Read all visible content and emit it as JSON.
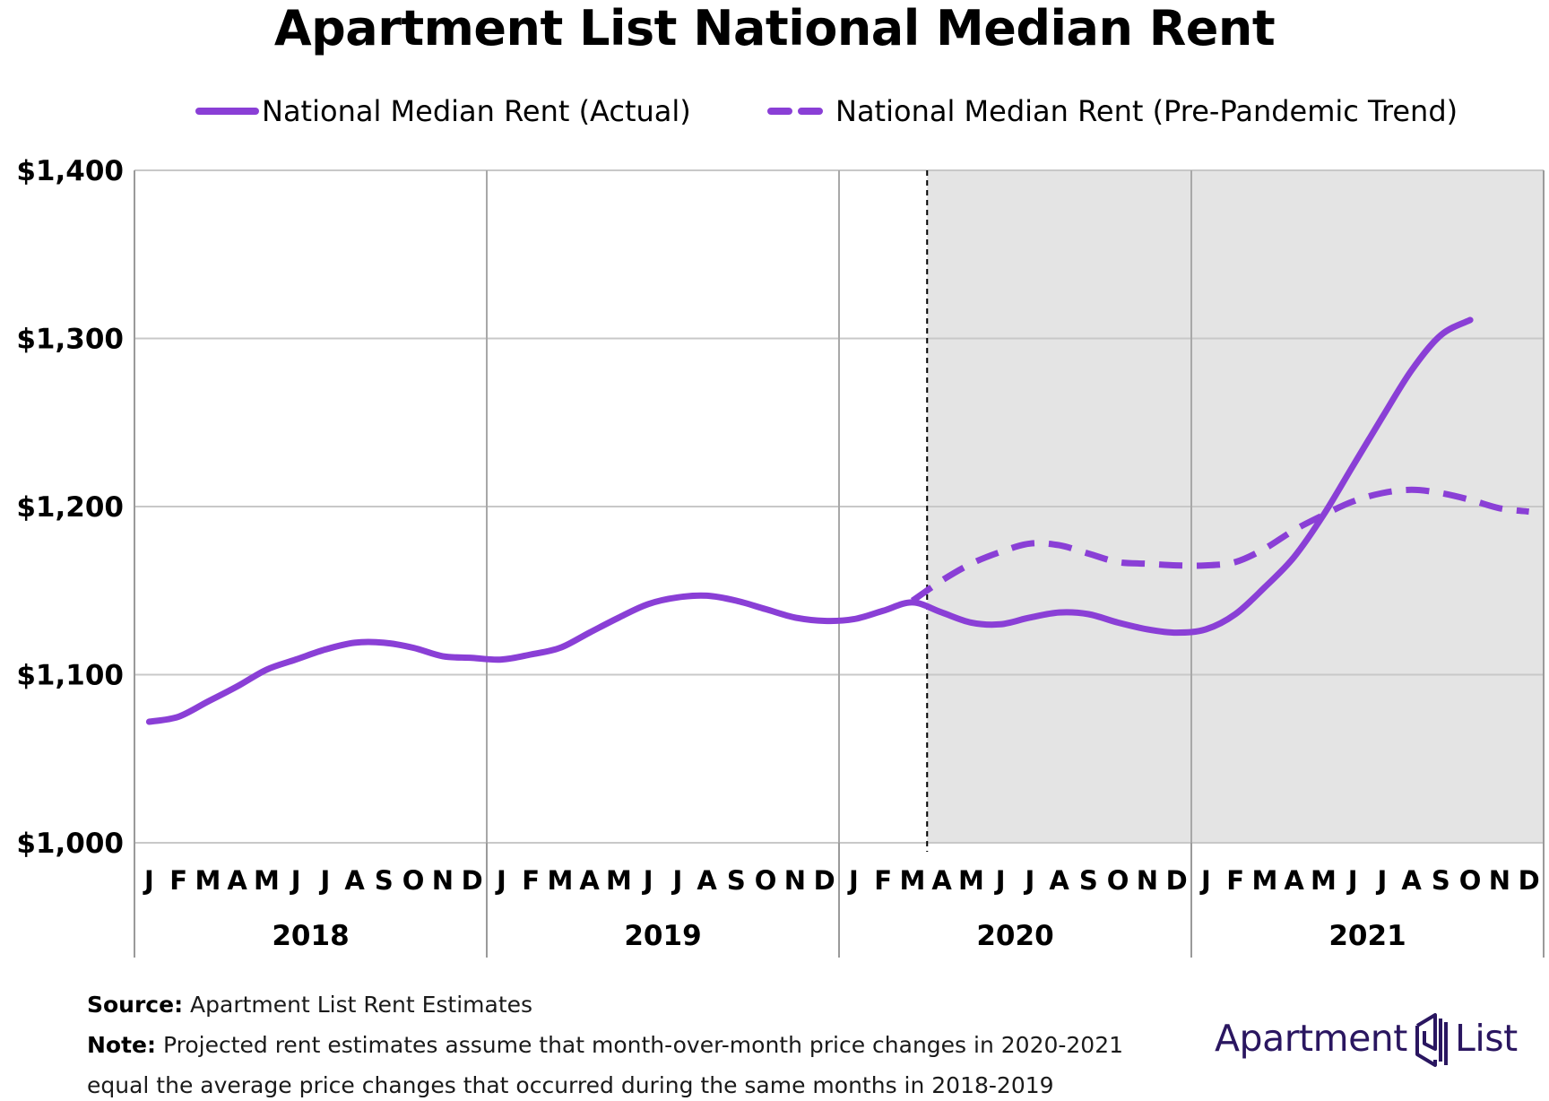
{
  "title": "Apartment List National Median Rent",
  "colors": {
    "series": "#8a3fd6",
    "shade": "#e4e4e4",
    "grid": "#c8c8c8",
    "logo": "#2a1660"
  },
  "chart_data": {
    "type": "line",
    "title": "Apartment List National Median Rent",
    "xlabel": "",
    "ylabel": "",
    "ylim": [
      1000,
      1400
    ],
    "y_ticks": [
      1000,
      1100,
      1200,
      1300,
      1400
    ],
    "y_tick_labels": [
      "$1,000",
      "$1,100",
      "$1,200",
      "$1,300",
      "$1,400"
    ],
    "years": [
      "2018",
      "2019",
      "2020",
      "2021"
    ],
    "month_labels": [
      "J",
      "F",
      "M",
      "A",
      "M",
      "J",
      "J",
      "A",
      "S",
      "O",
      "N",
      "D"
    ],
    "shaded_region": {
      "from": "2020-04",
      "to": "2021-12"
    },
    "legend_position": "top",
    "grid": true,
    "series": [
      {
        "name": "National Median Rent (Actual)",
        "style": "solid",
        "x": [
          "2018-01",
          "2018-02",
          "2018-03",
          "2018-04",
          "2018-05",
          "2018-06",
          "2018-07",
          "2018-08",
          "2018-09",
          "2018-10",
          "2018-11",
          "2018-12",
          "2019-01",
          "2019-02",
          "2019-03",
          "2019-04",
          "2019-05",
          "2019-06",
          "2019-07",
          "2019-08",
          "2019-09",
          "2019-10",
          "2019-11",
          "2019-12",
          "2020-01",
          "2020-02",
          "2020-03",
          "2020-04",
          "2020-05",
          "2020-06",
          "2020-07",
          "2020-08",
          "2020-09",
          "2020-10",
          "2020-11",
          "2020-12",
          "2021-01",
          "2021-02",
          "2021-03",
          "2021-04",
          "2021-05",
          "2021-06",
          "2021-07",
          "2021-08",
          "2021-09",
          "2021-10"
        ],
        "values": [
          1072,
          1075,
          1084,
          1093,
          1103,
          1109,
          1115,
          1119,
          1119,
          1116,
          1111,
          1110,
          1109,
          1112,
          1116,
          1125,
          1134,
          1142,
          1146,
          1147,
          1144,
          1139,
          1134,
          1132,
          1133,
          1138,
          1143,
          1137,
          1131,
          1130,
          1134,
          1137,
          1136,
          1131,
          1127,
          1125,
          1127,
          1136,
          1152,
          1170,
          1195,
          1224,
          1253,
          1281,
          1302,
          1311
        ]
      },
      {
        "name": "National Median Rent (Pre-Pandemic Trend)",
        "style": "dashed",
        "x": [
          "2020-03",
          "2020-04",
          "2020-05",
          "2020-06",
          "2020-07",
          "2020-08",
          "2020-09",
          "2020-10",
          "2020-11",
          "2020-12",
          "2021-01",
          "2021-02",
          "2021-03",
          "2021-04",
          "2021-05",
          "2021-06",
          "2021-07",
          "2021-08",
          "2021-09",
          "2021-10",
          "2021-11",
          "2021-12"
        ],
        "values": [
          1144,
          1156,
          1166,
          1173,
          1178,
          1177,
          1172,
          1167,
          1166,
          1165,
          1165,
          1167,
          1175,
          1186,
          1195,
          1203,
          1208,
          1210,
          1208,
          1204,
          1199,
          1197
        ]
      }
    ]
  },
  "footer": {
    "source_label": "Source:",
    "source_text": "Apartment List Rent Estimates",
    "note_label": "Note:",
    "note_line1": "Projected rent estimates assume that month-over-month price changes in 2020-2021",
    "note_line2": "equal the average price changes that occurred during the same months in 2018-2019"
  },
  "logo": {
    "word1": "Apartment",
    "word2": "List"
  }
}
